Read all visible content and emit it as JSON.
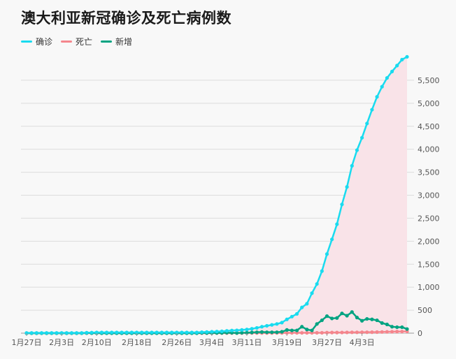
{
  "title": "澳大利亚新冠确诊及死亡病例数",
  "chart_data": {
    "type": "line",
    "title": "澳大利亚新冠确诊及死亡病例数",
    "xlabel": "",
    "ylabel": "",
    "ylim": [
      0,
      6000
    ],
    "y_ticks": [
      0,
      500,
      1000,
      1500,
      2000,
      2500,
      3000,
      3500,
      4000,
      4500,
      5000,
      5500
    ],
    "y_tick_labels": [
      "0",
      "500",
      "1,000",
      "1,500",
      "2,000",
      "2,500",
      "3,000",
      "3,500",
      "4,000",
      "4,500",
      "5,000",
      "5,500"
    ],
    "x_tick_labels": [
      "1月27日",
      "2月3日",
      "2月10日",
      "2月18日",
      "2月26日",
      "3月4日",
      "3月11日",
      "3月19日",
      "3月27日",
      "4月3日"
    ],
    "x_tick_day_index": [
      0,
      7,
      14,
      22,
      30,
      37,
      44,
      52,
      60,
      67
    ],
    "legend_position": "top-left",
    "grid": "horizontal",
    "series": [
      {
        "name": "确诊",
        "color": "#19dbef",
        "area_fill": "#f9e3e8",
        "values": [
          5,
          5,
          5,
          5,
          5,
          5,
          5,
          5,
          5,
          5,
          5,
          5,
          10,
          12,
          15,
          15,
          15,
          15,
          15,
          15,
          15,
          15,
          15,
          15,
          15,
          15,
          15,
          15,
          15,
          15,
          15,
          15,
          15,
          15,
          15,
          22,
          25,
          30,
          35,
          40,
          50,
          58,
          62,
          70,
          80,
          95,
          115,
          140,
          160,
          180,
          200,
          230,
          300,
          360,
          420,
          560,
          640,
          870,
          1070,
          1350,
          1720,
          2040,
          2370,
          2800,
          3180,
          3640,
          3980,
          4250,
          4560,
          4860,
          5140,
          5360,
          5550,
          5690,
          5820,
          5950,
          6010
        ]
      },
      {
        "name": "死亡",
        "color": "#f4868d",
        "values": [
          0,
          0,
          0,
          0,
          0,
          0,
          0,
          0,
          0,
          0,
          0,
          0,
          0,
          0,
          0,
          0,
          0,
          0,
          0,
          0,
          0,
          0,
          0,
          0,
          0,
          0,
          0,
          0,
          0,
          0,
          0,
          0,
          0,
          0,
          0,
          0,
          0,
          1,
          1,
          1,
          1,
          2,
          2,
          2,
          3,
          3,
          3,
          3,
          3,
          4,
          5,
          6,
          6,
          7,
          7,
          7,
          7,
          7,
          8,
          8,
          11,
          13,
          13,
          14,
          16,
          18,
          18,
          19,
          20,
          21,
          23,
          26,
          28,
          30,
          34,
          35,
          38
        ]
      },
      {
        "name": "新增",
        "color": "#00a381",
        "values": [
          0,
          0,
          0,
          0,
          0,
          0,
          0,
          0,
          0,
          0,
          0,
          0,
          4,
          2,
          3,
          0,
          0,
          0,
          0,
          0,
          0,
          0,
          0,
          0,
          0,
          0,
          0,
          0,
          0,
          0,
          0,
          0,
          0,
          0,
          0,
          7,
          3,
          5,
          5,
          5,
          10,
          8,
          4,
          8,
          10,
          15,
          20,
          25,
          20,
          20,
          20,
          30,
          70,
          60,
          60,
          140,
          80,
          60,
          200,
          280,
          370,
          320,
          330,
          430,
          380,
          460,
          340,
          270,
          310,
          300,
          280,
          220,
          190,
          140,
          130,
          130,
          90
        ]
      }
    ]
  }
}
